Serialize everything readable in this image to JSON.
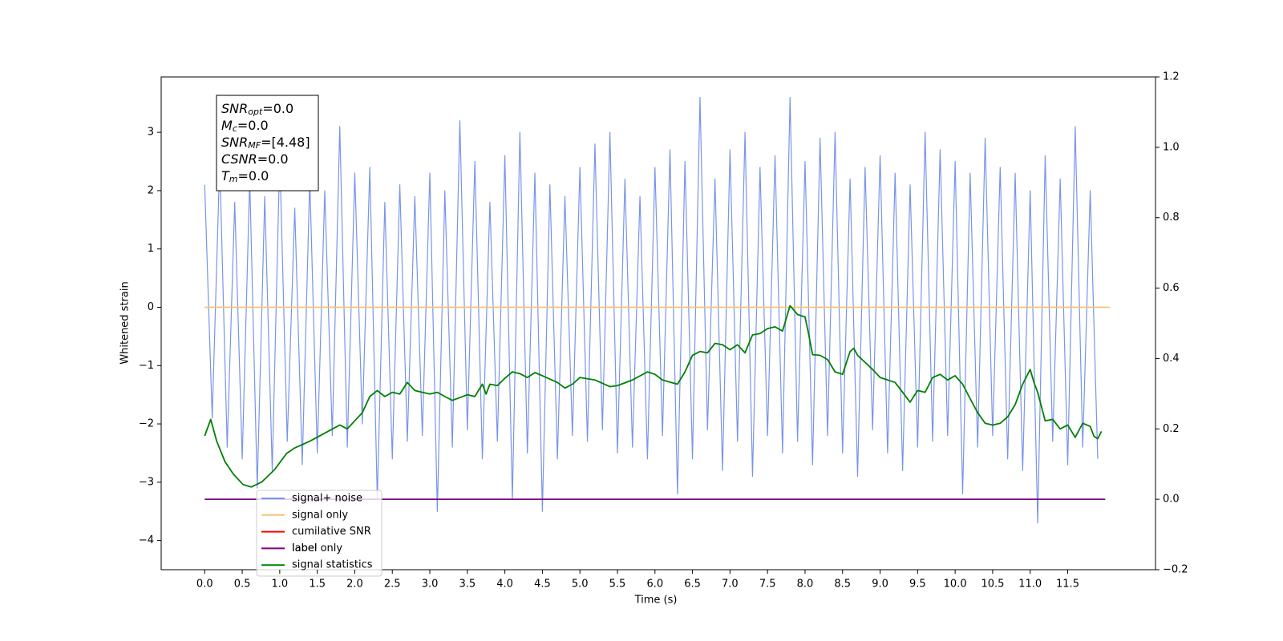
{
  "chart_data": {
    "type": "line",
    "xlabel": "Time (s)",
    "ylabel": "Whitened strain",
    "xlim": [
      -0.58,
      12.67
    ],
    "ylim": [
      -4.5,
      3.95
    ],
    "y2lim": [
      -0.2,
      1.2
    ],
    "xticks": [
      {
        "value": 0,
        "label": "0.0"
      },
      0.5,
      {
        "value": 1,
        "label": "1.0"
      },
      1.5,
      {
        "value": 2,
        "label": "2.0"
      },
      2.5,
      {
        "value": 3,
        "label": "3.0"
      },
      3.5,
      {
        "value": 4,
        "label": "4.0"
      },
      4.5,
      {
        "value": 5,
        "label": "5.0"
      },
      5.5,
      {
        "value": 6,
        "label": "6.0"
      },
      6.5,
      {
        "value": 7,
        "label": "7.0"
      },
      7.5,
      {
        "value": 8,
        "label": "8.0"
      },
      8.5,
      {
        "value": 9,
        "label": "9.0"
      },
      9.5,
      {
        "value": 10,
        "label": "10.0"
      },
      10.5,
      {
        "value": 11,
        "label": "11.0"
      },
      11.5
    ],
    "yticks": [
      {
        "value": -4,
        "label": "−4"
      },
      {
        "value": -3,
        "label": "−3"
      },
      {
        "value": -2,
        "label": "−2"
      },
      {
        "value": -1,
        "label": "−1"
      },
      0,
      1,
      2,
      3
    ],
    "y2ticks": [
      {
        "value": -0.2,
        "label": "−0.2"
      },
      {
        "value": 0,
        "label": "0.0"
      },
      0.2,
      0.4,
      0.6,
      0.8,
      {
        "value": 1,
        "label": "1.0"
      },
      1.2
    ],
    "annotation": [
      {
        "name": "SNR",
        "sub": "opt",
        "text": "=0.0"
      },
      {
        "name": "M",
        "sub": "c",
        "text": "=0.0"
      },
      {
        "name": "SNR",
        "sub": "MF",
        "text": "=[4.48]"
      },
      {
        "name": "CSNR",
        "sub": "",
        "text": "=0.0"
      },
      {
        "name": "T",
        "sub": "m",
        "text": "=0.0"
      }
    ],
    "series": [
      {
        "name": "signal+ noise",
        "color": "#7994e8",
        "x": [
          0.0,
          0.1,
          0.2,
          0.3,
          0.4,
          0.5,
          0.6,
          0.7,
          0.8,
          0.9,
          1.0,
          1.1,
          1.2,
          1.3,
          1.4,
          1.5,
          1.6,
          1.7,
          1.8,
          1.9,
          2.0,
          2.1,
          2.2,
          2.3,
          2.4,
          2.5,
          2.6,
          2.7,
          2.8,
          2.9,
          3.0,
          3.1,
          3.2,
          3.3,
          3.4,
          3.5,
          3.6,
          3.7,
          3.8,
          3.9,
          4.0,
          4.1,
          4.2,
          4.3,
          4.4,
          4.5,
          4.6,
          4.7,
          4.8,
          4.9,
          5.0,
          5.1,
          5.2,
          5.3,
          5.4,
          5.5,
          5.6,
          5.7,
          5.8,
          5.9,
          6.0,
          6.1,
          6.2,
          6.3,
          6.4,
          6.5,
          6.6,
          6.7,
          6.8,
          6.9,
          7.0,
          7.1,
          7.2,
          7.3,
          7.4,
          7.5,
          7.6,
          7.7,
          7.8,
          7.9,
          8.0,
          8.1,
          8.2,
          8.3,
          8.4,
          8.5,
          8.6,
          8.7,
          8.8,
          8.9,
          9.0,
          9.1,
          9.2,
          9.3,
          9.4,
          9.5,
          9.6,
          9.7,
          9.8,
          9.9,
          10.0,
          10.1,
          10.2,
          10.3,
          10.4,
          10.5,
          10.6,
          10.7,
          10.8,
          10.9,
          11.0,
          11.1,
          11.2,
          11.3,
          11.4,
          11.5,
          11.6,
          11.7,
          11.8,
          11.9
        ],
        "values": [
          2.1,
          -1.9,
          2.5,
          -2.4,
          1.8,
          -2.6,
          2.2,
          -3.1,
          1.9,
          -2.8,
          2.6,
          -2.3,
          1.7,
          -2.7,
          2.2,
          -2.5,
          2.0,
          -2.2,
          3.1,
          -2.4,
          2.3,
          -2.0,
          2.4,
          -3.3,
          1.8,
          -2.6,
          2.1,
          -2.3,
          1.9,
          -2.2,
          2.3,
          -3.5,
          2.0,
          -2.4,
          3.2,
          -2.1,
          2.5,
          -2.6,
          1.8,
          -2.3,
          2.6,
          -3.3,
          3.0,
          -2.5,
          2.3,
          -3.5,
          2.1,
          -2.6,
          1.9,
          -2.2,
          2.4,
          -2.3,
          2.8,
          -2.1,
          3.0,
          -2.5,
          2.2,
          -2.4,
          1.9,
          -2.6,
          2.4,
          -2.2,
          2.7,
          -3.2,
          2.5,
          -2.6,
          3.6,
          -2.1,
          2.2,
          -2.8,
          2.7,
          -2.3,
          3.0,
          -2.9,
          2.4,
          -2.2,
          2.6,
          -2.5,
          3.6,
          -2.3,
          2.5,
          -2.7,
          2.9,
          -2.2,
          3.0,
          -2.5,
          2.2,
          -2.9,
          2.4,
          -2.1,
          2.6,
          -2.5,
          2.3,
          -2.8,
          2.1,
          -2.4,
          3.0,
          -2.3,
          2.7,
          -2.2,
          2.5,
          -3.2,
          2.3,
          -2.4,
          2.9,
          -2.2,
          2.4,
          -2.6,
          2.3,
          -2.8,
          2.0,
          -3.7,
          2.6,
          -2.3,
          2.2,
          -2.7,
          3.1,
          -2.4,
          2.0,
          -2.6
        ]
      },
      {
        "name": "signal only",
        "color": "#f7c17a",
        "x": [
          0.0,
          12.06
        ],
        "values": [
          0,
          0
        ]
      },
      {
        "name": "cumilative SNR",
        "color": "#ff0000",
        "x": [],
        "values": []
      },
      {
        "name": "label only",
        "color": "#800080",
        "legend_faded": true,
        "x": [],
        "values": []
      },
      {
        "name": "label",
        "color": "#800080",
        "axis": "y2",
        "legend_overlap": true,
        "x": [
          0.0,
          12.0
        ],
        "values": [
          0,
          0
        ]
      },
      {
        "name": "signal statistics",
        "color": "#008000",
        "axis": "y2",
        "x": [
          0.0,
          0.08,
          0.16,
          0.27,
          0.38,
          0.51,
          0.62,
          0.76,
          0.93,
          1.09,
          1.2,
          1.4,
          1.6,
          1.8,
          1.9,
          2.0,
          2.1,
          2.2,
          2.3,
          2.4,
          2.5,
          2.6,
          2.7,
          2.8,
          2.9,
          3.0,
          3.1,
          3.2,
          3.3,
          3.5,
          3.6,
          3.7,
          3.75,
          3.8,
          3.9,
          4.0,
          4.1,
          4.2,
          4.3,
          4.4,
          4.5,
          4.7,
          4.8,
          4.9,
          5.0,
          5.2,
          5.4,
          5.5,
          5.7,
          5.9,
          6.0,
          6.1,
          6.3,
          6.4,
          6.5,
          6.6,
          6.7,
          6.8,
          6.9,
          7.0,
          7.1,
          7.2,
          7.3,
          7.4,
          7.5,
          7.6,
          7.7,
          7.8,
          7.9,
          8.0,
          8.05,
          8.1,
          8.2,
          8.3,
          8.4,
          8.5,
          8.6,
          8.65,
          8.7,
          8.9,
          9.0,
          9.2,
          9.3,
          9.4,
          9.5,
          9.6,
          9.7,
          9.8,
          9.9,
          10.0,
          10.1,
          10.2,
          10.3,
          10.4,
          10.5,
          10.6,
          10.7,
          10.8,
          10.9,
          11.0,
          11.05,
          11.1,
          11.2,
          11.3,
          11.4,
          11.5,
          11.6,
          11.7,
          11.8,
          11.85,
          11.9,
          11.95
        ],
        "values": [
          0.18,
          0.227,
          0.165,
          0.107,
          0.072,
          0.042,
          0.035,
          0.049,
          0.084,
          0.13,
          0.146,
          0.165,
          0.188,
          0.211,
          0.2,
          0.223,
          0.246,
          0.292,
          0.309,
          0.292,
          0.304,
          0.299,
          0.332,
          0.309,
          0.304,
          0.299,
          0.304,
          0.292,
          0.281,
          0.297,
          0.292,
          0.327,
          0.299,
          0.327,
          0.323,
          0.344,
          0.362,
          0.357,
          0.346,
          0.36,
          0.351,
          0.332,
          0.316,
          0.327,
          0.346,
          0.339,
          0.32,
          0.323,
          0.339,
          0.362,
          0.355,
          0.339,
          0.327,
          0.362,
          0.409,
          0.42,
          0.416,
          0.443,
          0.439,
          0.425,
          0.439,
          0.416,
          0.467,
          0.471,
          0.485,
          0.49,
          0.478,
          0.55,
          0.525,
          0.518,
          0.467,
          0.411,
          0.409,
          0.397,
          0.362,
          0.355,
          0.42,
          0.429,
          0.409,
          0.369,
          0.346,
          0.332,
          0.304,
          0.276,
          0.309,
          0.304,
          0.346,
          0.355,
          0.339,
          0.351,
          0.327,
          0.286,
          0.246,
          0.216,
          0.211,
          0.216,
          0.234,
          0.269,
          0.327,
          0.369,
          0.332,
          0.304,
          0.223,
          0.227,
          0.2,
          0.211,
          0.176,
          0.216,
          0.207,
          0.179,
          0.172,
          0.193
        ]
      }
    ]
  }
}
